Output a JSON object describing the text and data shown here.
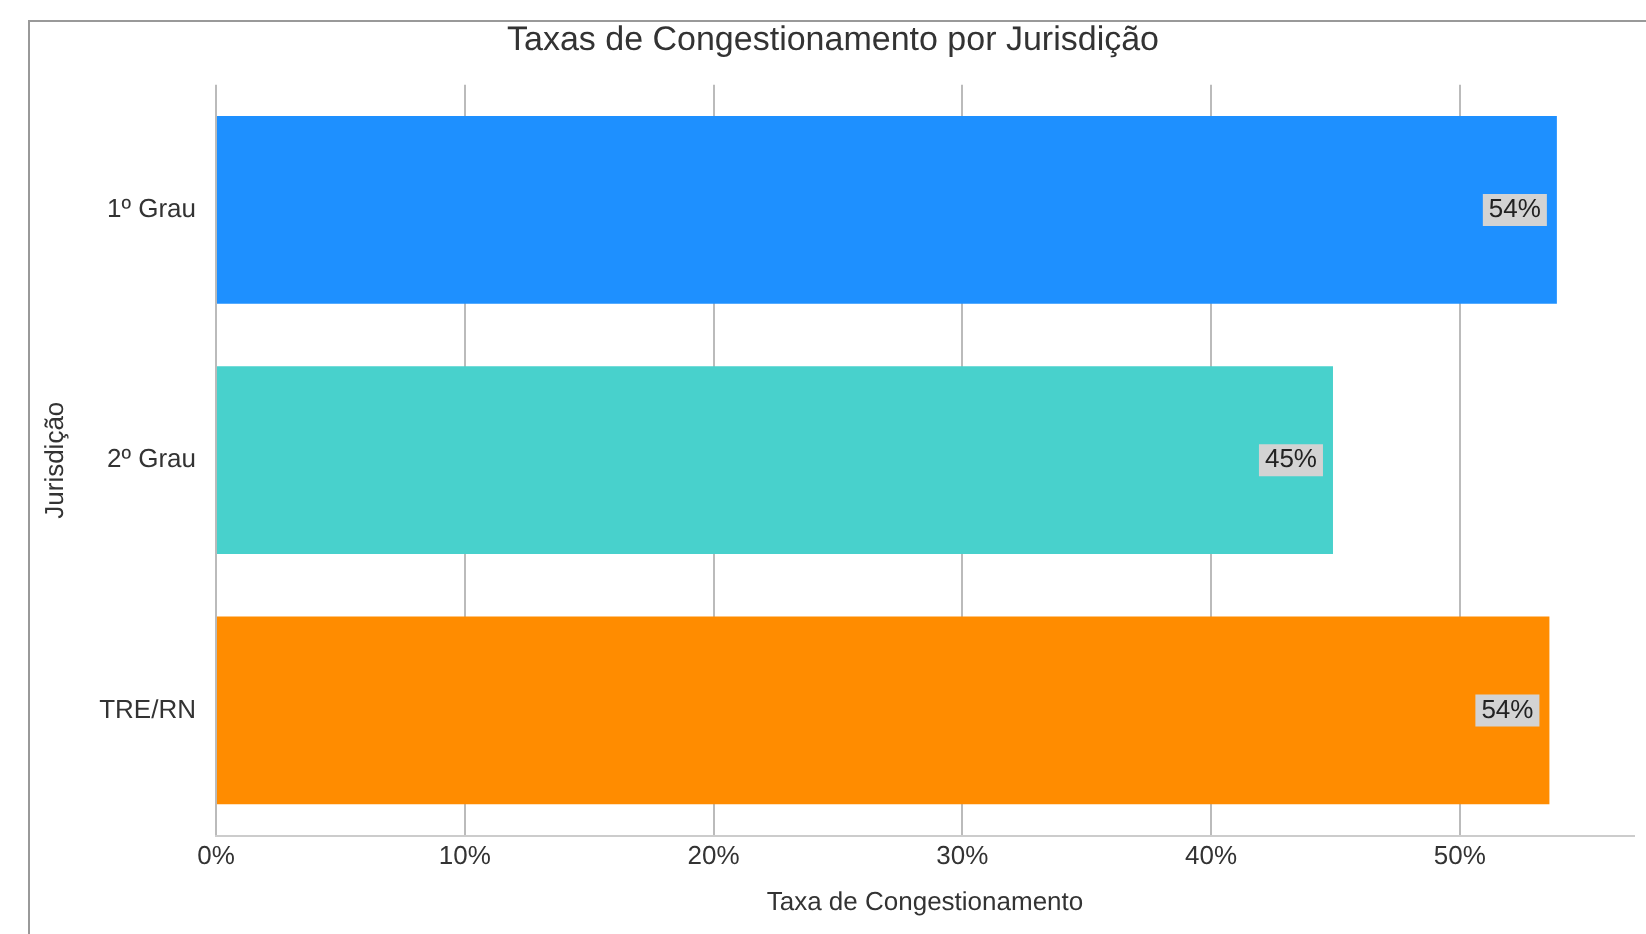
{
  "chart_data": {
    "type": "bar",
    "orientation": "horizontal",
    "title": "Taxas de Congestionamento por Jurisdição",
    "xlabel": "Taxa de Congestionamento",
    "ylabel": "Jurisdição",
    "categories": [
      "1º Grau",
      "2º Grau",
      "TRE/RN"
    ],
    "values": [
      53.9,
      44.9,
      53.6
    ],
    "colors": [
      "#1e90ff",
      "#48d1cc",
      "#ff8c00"
    ],
    "value_labels": [
      "54%",
      "45%",
      "54%"
    ],
    "xlim": [
      0,
      57
    ],
    "xticks": [
      {
        "value": 0,
        "label": "0%"
      },
      {
        "value": 10,
        "label": "10%"
      },
      {
        "value": 20,
        "label": "20%"
      },
      {
        "value": 30,
        "label": "30%"
      },
      {
        "value": 40,
        "label": "40%"
      },
      {
        "value": 50,
        "label": "50%"
      }
    ],
    "grid": "x",
    "legend": false
  }
}
